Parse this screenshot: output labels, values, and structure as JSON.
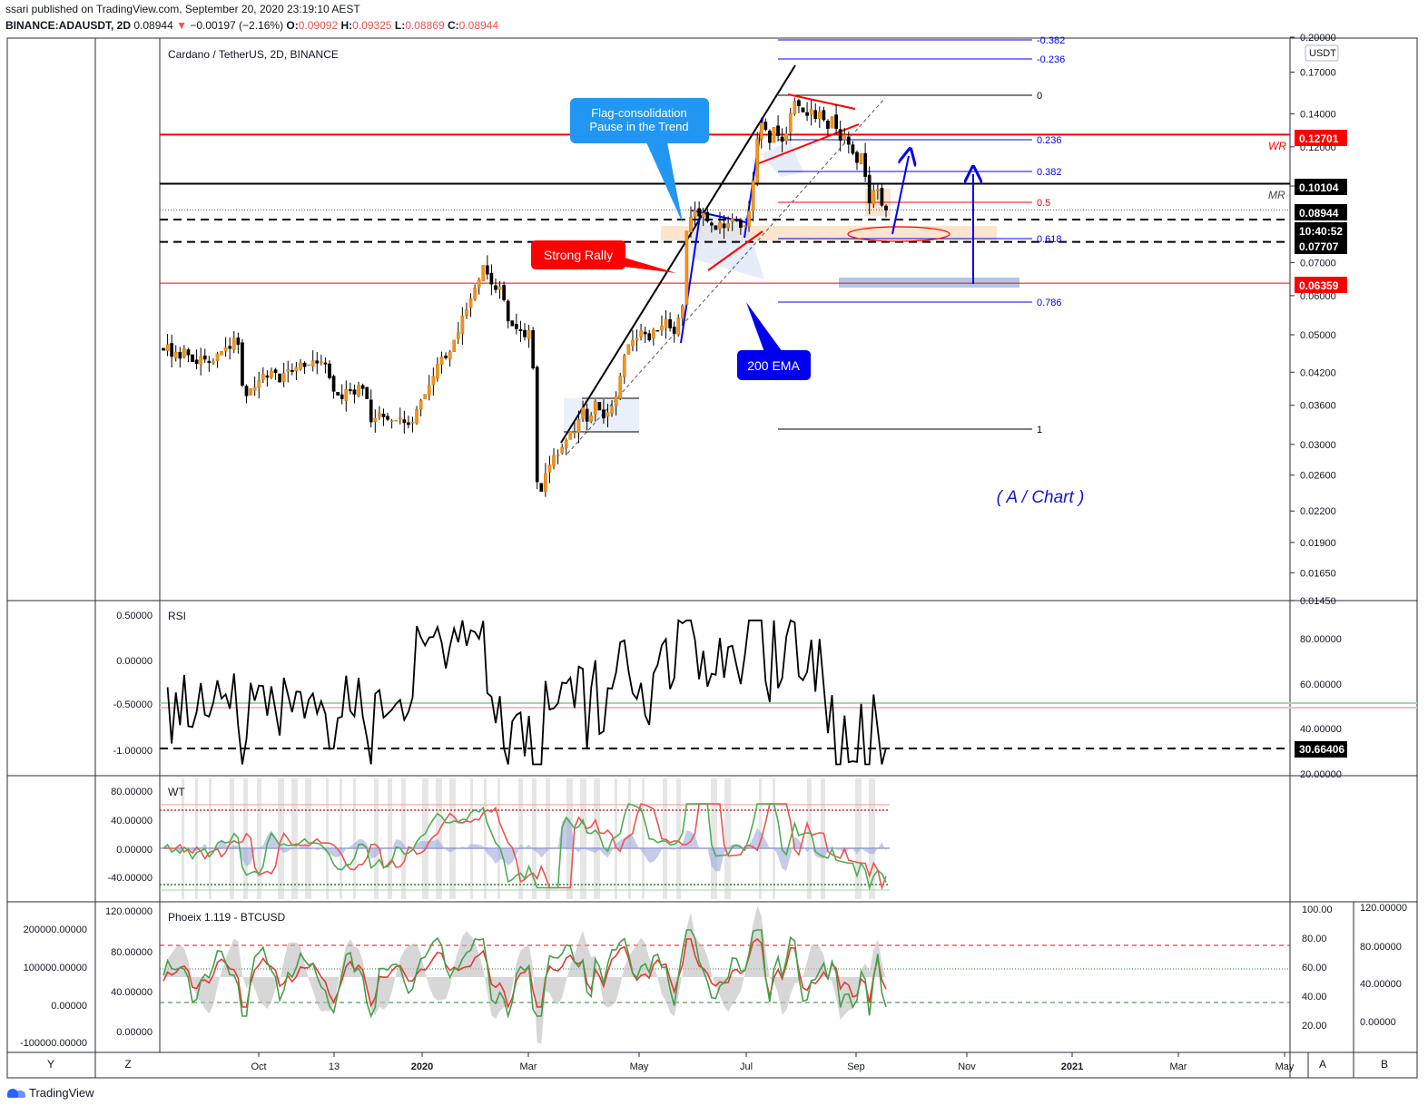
{
  "header": {
    "published": "ssari published on TradingView.com, September 20, 2020 23:19:10 AEST",
    "symbol": "BINANCE:ADAUSDT, 2D",
    "last": "0.08944",
    "arrow": "▼",
    "change": "−0.00197 (−2.16%)",
    "o_label": "O:",
    "o": "0.09092",
    "h_label": "H:",
    "h": "0.09325",
    "l_label": "L:",
    "l": "0.08869",
    "c_label": "C:",
    "c": "0.08944"
  },
  "main_pane": {
    "title": "Cardano / TetherUS, 2D, BINANCE",
    "currency": "USDT",
    "price_ticks": [
      "0.20000",
      "0.17000",
      "0.14000",
      "0.12000",
      "0.10000",
      "0.07000",
      "0.06000",
      "0.05000",
      "0.04200",
      "0.03600",
      "0.03000",
      "0.02600",
      "0.02200",
      "0.01900",
      "0.01650",
      "0.01450"
    ],
    "price_tags": [
      {
        "text": "0.12701",
        "color": "#ff0000"
      },
      {
        "text": "0.10104",
        "color": "#000000"
      },
      {
        "text": "0.08944",
        "color": "#000000"
      },
      {
        "text": "10:40:52",
        "color": "#000000"
      },
      {
        "text": "0.07707",
        "color": "#000000"
      },
      {
        "text": "0.06359",
        "color": "#ff0000"
      }
    ],
    "fib_labels": [
      "-0.382",
      "-0.236",
      "0",
      "0.236",
      "0.382",
      "0.5",
      "0.618",
      "0.786",
      "1"
    ],
    "annotations": {
      "flag": [
        "Flag-consolidation",
        "Pause in the Trend"
      ],
      "strong_rally": "Strong Rally",
      "ema": "200 EMA",
      "chart_tag": "( A / Chart )",
      "wr": "WR",
      "mr": "MR"
    }
  },
  "rsi_pane": {
    "title": "RSI",
    "left_ticks": [
      "0.50000",
      "0.00000",
      "-0.50000",
      "-1.00000"
    ],
    "right_ticks": [
      "80.00000",
      "60.00000",
      "40.00000",
      "20.00000"
    ],
    "value_tag": "30.66406"
  },
  "wt_pane": {
    "title": "WT",
    "left_ticks": [
      "80.00000",
      "40.00000",
      "0.00000",
      "-40.00000"
    ]
  },
  "phoeix_pane": {
    "title": "Phoeix 1.119 - BTCUSD",
    "far_left_ticks": [
      "200000.00000",
      "100000.00000",
      "0.00000",
      "-100000.00000"
    ],
    "left_ticks": [
      "120.00000",
      "80.00000",
      "40.00000",
      "0.00000"
    ],
    "right_ticks": [
      "100.00",
      "80.00",
      "60.00",
      "40.00",
      "20.00"
    ],
    "far_right_ticks": [
      "120.00000",
      "80.00000",
      "40.00000",
      "0.00000"
    ]
  },
  "time_axis": {
    "labels": [
      "Oct",
      "13",
      "2020",
      "Mar",
      "May",
      "Jul",
      "Sep",
      "Nov",
      "2021",
      "Mar",
      "May"
    ],
    "corner_labels": [
      "Y",
      "Z",
      "A",
      "B"
    ]
  },
  "footer": {
    "brand": "TradingView"
  },
  "colors": {
    "up": "#f7931a",
    "down": "#000000",
    "fib": "#0000ff",
    "red_line": "#ff0000",
    "zone": "#fbe0c4",
    "callout_blue": "#2196f3",
    "callout_red": "#ff0000",
    "callout_navy": "#0000ee",
    "wt_green": "#4caf50",
    "wt_red": "#ef5350"
  },
  "chart_data": {
    "type": "candlestick",
    "title": "Cardano / TetherUS, 2D, BINANCE",
    "y_scale": "log",
    "ylim": [
      0.0145,
      0.2
    ],
    "x_range": [
      "2019-08-26",
      "2021-05-10"
    ],
    "series": [
      {
        "name": "ADAUSDT",
        "close": [
          0.0465,
          0.0478,
          0.0452,
          0.0461,
          0.0448,
          0.0469,
          0.0455,
          0.0441,
          0.0437,
          0.0452,
          0.0446,
          0.0439,
          0.0441,
          0.0458,
          0.0463,
          0.0471,
          0.0469,
          0.0492,
          0.0478,
          0.0395,
          0.0376,
          0.0389,
          0.0392,
          0.0404,
          0.0416,
          0.041,
          0.0422,
          0.0419,
          0.0401,
          0.0418,
          0.0425,
          0.0421,
          0.043,
          0.0439,
          0.0431,
          0.0435,
          0.0443,
          0.0438,
          0.0441,
          0.0436,
          0.0409,
          0.0384,
          0.0377,
          0.0371,
          0.0388,
          0.0385,
          0.0379,
          0.0395,
          0.0389,
          0.0371,
          0.0333,
          0.0339,
          0.0347,
          0.0341,
          0.0337,
          0.0335,
          0.0336,
          0.0339,
          0.0332,
          0.0329,
          0.0333,
          0.0353,
          0.0368,
          0.0379,
          0.0395,
          0.0412,
          0.0436,
          0.0451,
          0.0449,
          0.0462,
          0.0488,
          0.0505,
          0.0546,
          0.0562,
          0.0592,
          0.0622,
          0.0647,
          0.0691,
          0.0663,
          0.0633,
          0.0617,
          0.0626,
          0.0588,
          0.0533,
          0.0521,
          0.0514,
          0.0509,
          0.0495,
          0.0511,
          0.0428,
          0.0252,
          0.0241,
          0.0262,
          0.0273,
          0.0285,
          0.0286,
          0.0296,
          0.0306,
          0.0319,
          0.0318,
          0.0337,
          0.0356,
          0.0334,
          0.0343,
          0.0367,
          0.0352,
          0.0339,
          0.0348,
          0.0357,
          0.0375,
          0.0412,
          0.0454,
          0.0478,
          0.0487,
          0.0492,
          0.0509,
          0.0502,
          0.0488,
          0.0512,
          0.0509,
          0.0521,
          0.0538,
          0.0516,
          0.0503,
          0.0541,
          0.0572,
          0.0811,
          0.0866,
          0.0893,
          0.0869,
          0.0882,
          0.0849,
          0.0833,
          0.0816,
          0.0844,
          0.0823,
          0.084,
          0.0859,
          0.0853,
          0.0824,
          0.0831,
          0.0889,
          0.1025,
          0.1245,
          0.1341,
          0.1301,
          0.1224,
          0.1315,
          0.1263,
          0.1231,
          0.1276,
          0.1403,
          0.1485,
          0.1452,
          0.1411,
          0.1388,
          0.1432,
          0.1368,
          0.1413,
          0.1361,
          0.1307,
          0.1382,
          0.1306,
          0.1236,
          0.1268,
          0.1214,
          0.1164,
          0.1115,
          0.1164,
          0.1045,
          0.0923,
          0.0977,
          0.0982,
          0.0914,
          0.0894
        ]
      }
    ],
    "horizontal_levels": [
      0.12701,
      0.10104,
      0.08944,
      0.07707,
      0.06359
    ],
    "fibonacci": {
      "0": 0.1535,
      "0.236": 0.1255,
      "0.382": 0.1115,
      "0.5": 0.0985,
      "0.618": 0.0785,
      "0.786": 0.0588,
      "1": 0.0315
    },
    "rsi": {
      "title": "RSI",
      "last": 30.66406,
      "levels": [
        50,
        30
      ]
    },
    "wt": {
      "title": "WT",
      "levels": [
        53,
        -53
      ]
    },
    "phoeix": {
      "title": "Phoeix 1.119 - BTCUSD",
      "levels": [
        80,
        65,
        30
      ]
    }
  }
}
